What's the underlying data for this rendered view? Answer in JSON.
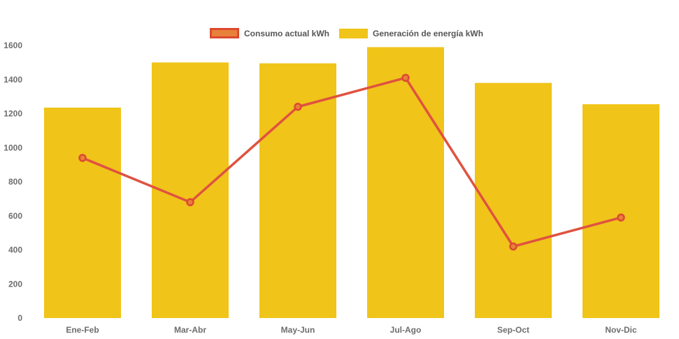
{
  "chart_data": {
    "type": "bar",
    "combo": "bar-and-line",
    "title": "",
    "xlabel": "",
    "ylabel": "",
    "categories": [
      "Ene-Feb",
      "Mar-Abr",
      "May-Jun",
      "Jul-Ago",
      "Sep-Oct",
      "Nov-Dic"
    ],
    "series": [
      {
        "name": "Consumo actual kWh",
        "type": "line",
        "values": [
          940,
          680,
          1240,
          1410,
          420,
          590
        ],
        "color": "#df5240",
        "marker_fill": "#e8813a",
        "marker_stroke": "#dc4a31"
      },
      {
        "name": "Generación de energía kWh",
        "type": "bar",
        "values": [
          1235,
          1500,
          1495,
          1590,
          1380,
          1255
        ],
        "color": "#f0c419"
      }
    ],
    "ylim": [
      0,
      1600
    ],
    "y_ticks": [
      0,
      200,
      400,
      600,
      800,
      1000,
      1200,
      1400,
      1600
    ],
    "grid": false,
    "axis_lines": false,
    "legend_position": "top-center",
    "colors": {
      "background": "#ffffff",
      "axis_text": "#6e6e6e",
      "legend_text": "#565656"
    }
  }
}
